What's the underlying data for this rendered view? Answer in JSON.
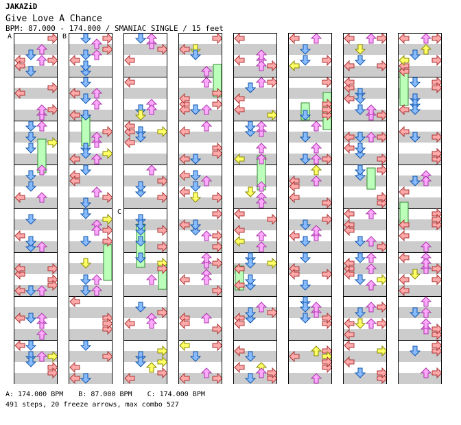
{
  "header": {
    "site": "JAKAZiD",
    "title": "Give Love A Chance",
    "bpm_line": "BPM: 87.000 - 174.000 / SMANIAC SINGLE / 15 feet"
  },
  "markers": [
    {
      "label": "A",
      "col": 0,
      "measure": 0
    },
    {
      "label": "B",
      "col": 1,
      "measure": 0
    },
    {
      "label": "C",
      "col": 2,
      "measure": 4
    }
  ],
  "footer": {
    "legend": [
      "A: 174.000 BPM",
      "B: 87.000 BPM",
      "C: 174.000 BPM"
    ],
    "summary": "491 steps, 20 freeze arrows, max combo 527"
  },
  "colors": {
    "left": "#ffaaaa",
    "down": "#88bbff",
    "up": "#ffaaff",
    "right": "#ffaaaa",
    "quarter_alt": "#ffff66",
    "freeze": "#bbffbb",
    "stripe": "#cccccc"
  }
}
